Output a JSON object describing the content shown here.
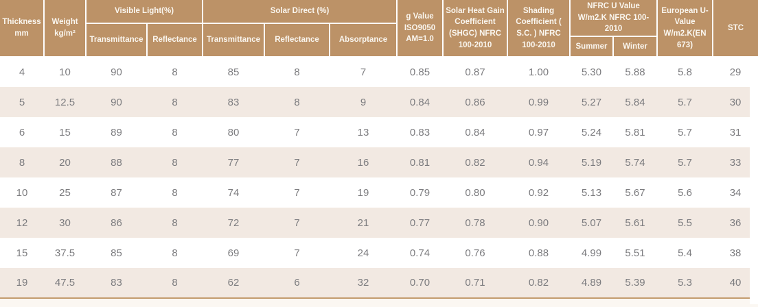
{
  "table": {
    "header": {
      "thickness": "Thickness mm",
      "weight": "Weight kg/m²",
      "visible_light": {
        "group": "Visible Light(%)",
        "transmittance": "Transmittance",
        "reflectance": "Reflectance"
      },
      "solar_direct": {
        "group": "Solar Direct (%)",
        "transmittance": "Transmittance",
        "reflectance": "Reflectance",
        "absorptance": "Absorptance"
      },
      "g_value": "g Value ISO9050 AM=1.0",
      "shgc": "Solar Heat Gain Coefficient (SHGC) NFRC 100-2010",
      "shading_coefficient": "Shading Coefficient ( S.C. ) NFRC 100-2010",
      "nfrc_u_value": {
        "group": "NFRC U Value W/m2.K NFRC 100-2010",
        "summer": "Summer",
        "winter": "Winter"
      },
      "european_u_value": "European U-Value W/m2.K(EN 673)",
      "stc": "STC"
    },
    "rows": [
      [
        "4",
        "10",
        "90",
        "8",
        "85",
        "8",
        "7",
        "0.85",
        "0.87",
        "1.00",
        "5.30",
        "5.88",
        "5.8",
        "29"
      ],
      [
        "5",
        "12.5",
        "90",
        "8",
        "83",
        "8",
        "9",
        "0.84",
        "0.86",
        "0.99",
        "5.27",
        "5.84",
        "5.7",
        "30"
      ],
      [
        "6",
        "15",
        "89",
        "8",
        "80",
        "7",
        "13",
        "0.83",
        "0.84",
        "0.97",
        "5.24",
        "5.81",
        "5.7",
        "31"
      ],
      [
        "8",
        "20",
        "88",
        "8",
        "77",
        "7",
        "16",
        "0.81",
        "0.82",
        "0.94",
        "5.19",
        "5.74",
        "5.7",
        "33"
      ],
      [
        "10",
        "25",
        "87",
        "8",
        "74",
        "7",
        "19",
        "0.79",
        "0.80",
        "0.92",
        "5.13",
        "5.67",
        "5.6",
        "34"
      ],
      [
        "12",
        "30",
        "86",
        "8",
        "72",
        "7",
        "21",
        "0.77",
        "0.78",
        "0.90",
        "5.07",
        "5.61",
        "5.5",
        "36"
      ],
      [
        "15",
        "37.5",
        "85",
        "8",
        "69",
        "7",
        "24",
        "0.74",
        "0.76",
        "0.88",
        "4.99",
        "5.51",
        "5.4",
        "38"
      ],
      [
        "19",
        "47.5",
        "83",
        "8",
        "62",
        "6",
        "32",
        "0.70",
        "0.71",
        "0.82",
        "4.89",
        "5.39",
        "5.3",
        "40"
      ]
    ]
  },
  "colors": {
    "header_background": "#bc9267",
    "header_text": "#faf6ef",
    "row_stripe": "#f2e9e2",
    "body_text": "#7c7c7f",
    "bottom_rule": "#c39b6e"
  }
}
